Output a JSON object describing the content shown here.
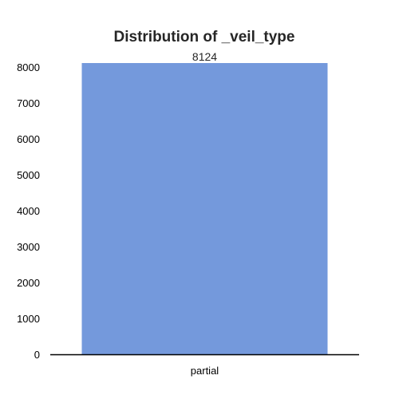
{
  "chart_data": {
    "type": "bar",
    "title": "Distribution of _veil_type",
    "xlabel": "",
    "ylabel": "",
    "categories": [
      "partial"
    ],
    "values": [
      8124
    ],
    "data_labels": [
      "8124"
    ],
    "ylim": [
      0,
      8124
    ],
    "yticks": [
      0,
      1000,
      2000,
      3000,
      4000,
      5000,
      6000,
      7000,
      8000
    ],
    "ytick_labels": [
      "0",
      "1000",
      "2000",
      "3000",
      "4000",
      "5000",
      "6000",
      "7000",
      "8000"
    ],
    "grid": false,
    "legend": "none",
    "colors": {
      "bar": "#7499dc",
      "axis": "#000000",
      "title": "#262626",
      "text": "#000000"
    }
  }
}
